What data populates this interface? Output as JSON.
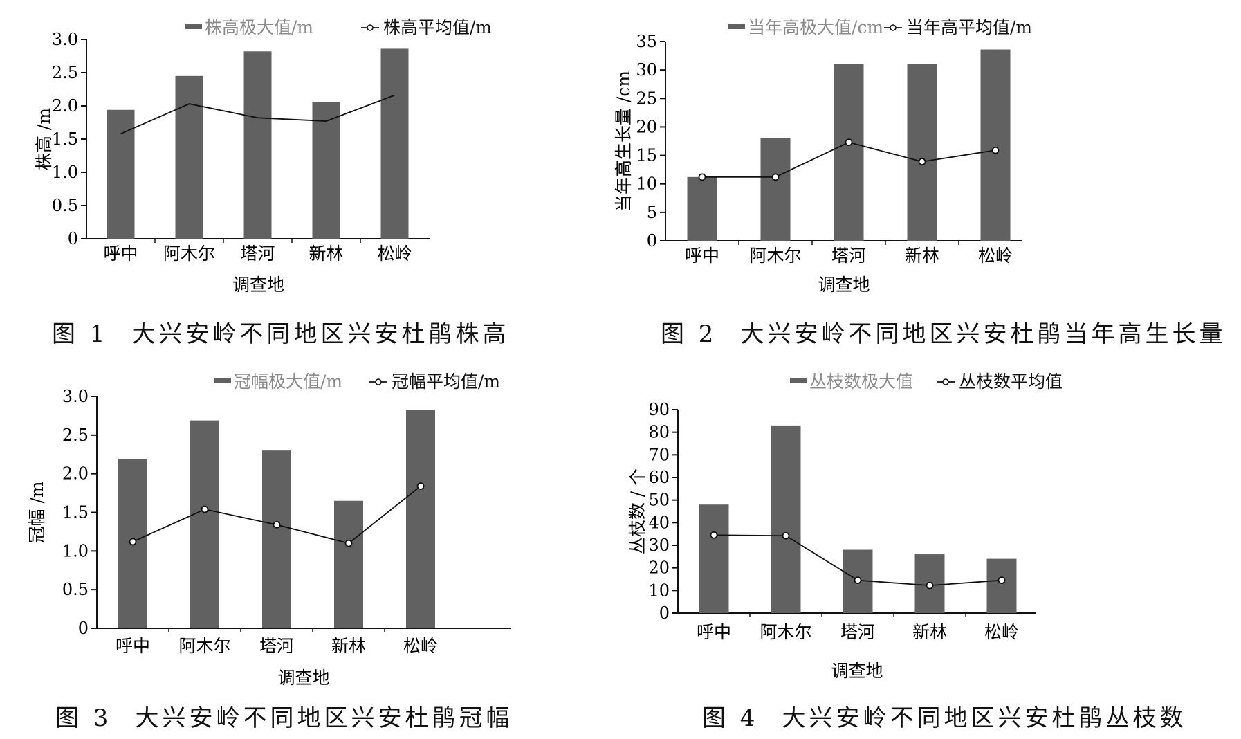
{
  "colors": {
    "bar": "#616161",
    "line": "#111111",
    "axis": "#111111",
    "legend_bar_text": "#8a8a8a"
  },
  "chart_data": [
    {
      "type": "bar",
      "figure_label": "图 1",
      "caption": "大兴安岭不同地区兴安杜鹃株高",
      "xlabel": "调查地",
      "ylabel": "株高 /m",
      "categories": [
        "呼中",
        "阿木尔",
        "塔河",
        "新林",
        "松岭"
      ],
      "ylim": [
        0,
        3.0
      ],
      "yticks": [
        "0",
        "0.5",
        "1.0",
        "1.5",
        "2.0",
        "2.5",
        "3.0"
      ],
      "legend_position": "top",
      "series": [
        {
          "name": "株高极大值/m",
          "kind": "bar",
          "values": [
            1.94,
            2.45,
            2.82,
            2.06,
            2.86
          ]
        },
        {
          "name": "株高平均值/m",
          "kind": "line",
          "markers": false,
          "values": [
            1.58,
            2.03,
            1.82,
            1.77,
            2.16
          ]
        }
      ]
    },
    {
      "type": "bar",
      "figure_label": "图 2",
      "caption": "大兴安岭不同地区兴安杜鹃当年高生长量",
      "xlabel": "调查地",
      "ylabel": "当年高生长量 /cm",
      "categories": [
        "呼中",
        "阿木尔",
        "塔河",
        "新林",
        "松岭"
      ],
      "ylim": [
        0,
        35
      ],
      "yticks": [
        "0",
        "5",
        "10",
        "15",
        "20",
        "25",
        "30",
        "35"
      ],
      "legend_position": "top",
      "series": [
        {
          "name": "当年高极大值/cm",
          "kind": "bar",
          "values": [
            11.2,
            18.0,
            31.0,
            31.0,
            33.6
          ]
        },
        {
          "name": "当年高平均值/m",
          "kind": "line",
          "markers": true,
          "values": [
            11.2,
            11.2,
            17.3,
            13.9,
            15.9
          ]
        }
      ]
    },
    {
      "type": "bar",
      "figure_label": "图 3",
      "caption": "大兴安岭不同地区兴安杜鹃冠幅",
      "xlabel": "调查地",
      "ylabel": "冠幅 /m",
      "categories": [
        "呼中",
        "阿木尔",
        "塔河",
        "新林",
        "松岭"
      ],
      "ylim": [
        0,
        3.0
      ],
      "yticks": [
        "0",
        "0.5",
        "1.0",
        "1.5",
        "2.0",
        "2.5",
        "3.0"
      ],
      "legend_position": "top",
      "series": [
        {
          "name": "冠幅极大值/m",
          "kind": "bar",
          "values": [
            2.19,
            2.69,
            2.3,
            1.65,
            2.83
          ]
        },
        {
          "name": "冠幅平均值/m",
          "kind": "line",
          "markers": true,
          "values": [
            1.12,
            1.54,
            1.34,
            1.1,
            1.84
          ]
        }
      ]
    },
    {
      "type": "bar",
      "figure_label": "图 4",
      "caption": "大兴安岭不同地区兴安杜鹃丛枝数",
      "xlabel": "调查地",
      "ylabel": "丛枝数 / 个",
      "categories": [
        "呼中",
        "阿木尔",
        "塔河",
        "新林",
        "松岭"
      ],
      "ylim": [
        0,
        90
      ],
      "yticks": [
        "0",
        "10",
        "20",
        "30",
        "40",
        "50",
        "60",
        "70",
        "80",
        "90"
      ],
      "legend_position": "top",
      "series": [
        {
          "name": "丛枝数极大值",
          "kind": "bar",
          "values": [
            48,
            83,
            28,
            26,
            24
          ]
        },
        {
          "name": "丛枝数平均值",
          "kind": "line",
          "markers": true,
          "values": [
            34.5,
            34.2,
            14.5,
            12.2,
            14.5
          ]
        }
      ]
    }
  ]
}
